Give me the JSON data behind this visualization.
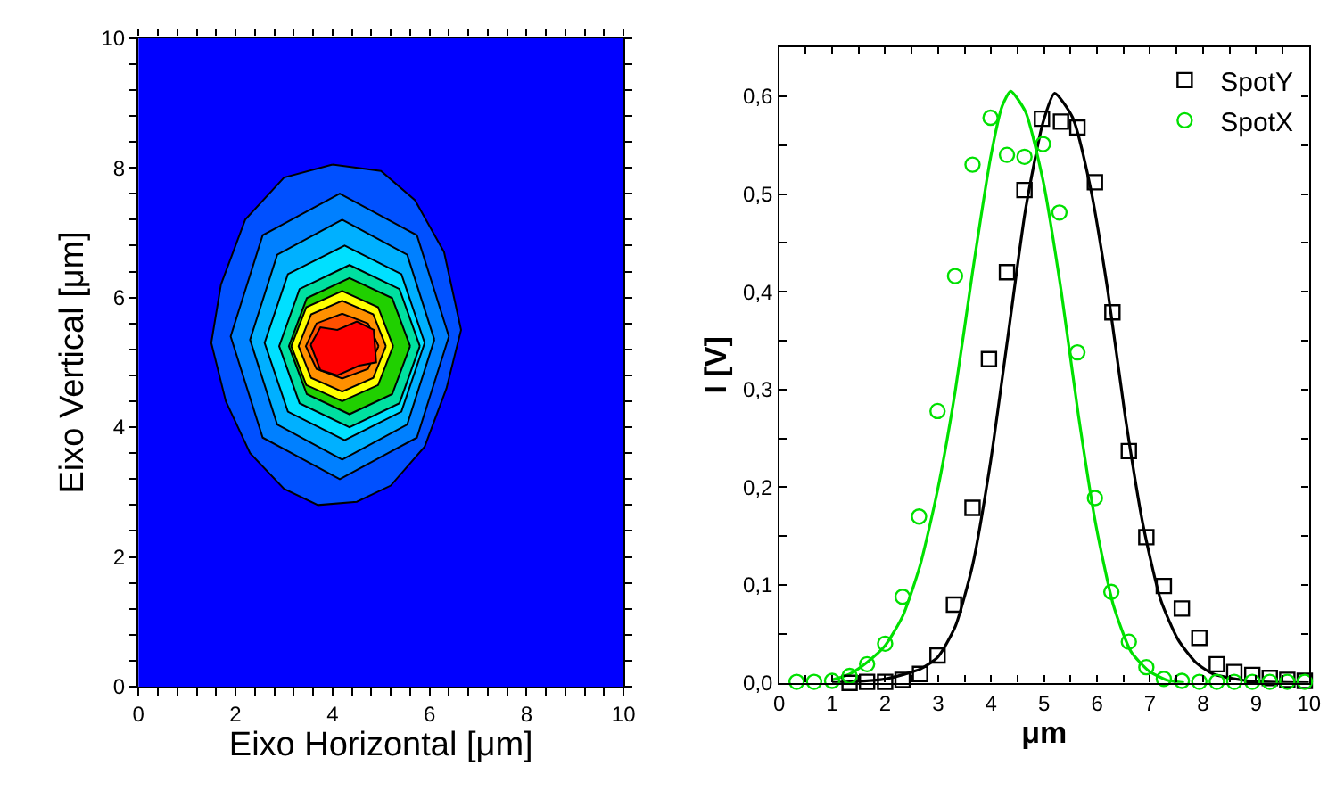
{
  "chart_data": [
    {
      "type": "area",
      "xlabel": "Eixo Horizontal [μm]",
      "ylabel": "Eixo Vertical [μm]",
      "xlim": [
        0,
        10
      ],
      "ylim": [
        0,
        10
      ],
      "xticks": [
        0,
        {
          "value": 0.4,
          "label": null
        },
        {
          "value": 0.8,
          "label": null
        },
        {
          "value": 1.2,
          "label": null
        },
        {
          "value": 1.6,
          "label": null
        },
        2,
        {
          "value": 2.4,
          "label": null
        },
        {
          "value": 2.8,
          "label": null
        },
        {
          "value": 3.2,
          "label": null
        },
        {
          "value": 3.6,
          "label": null
        },
        4,
        {
          "value": 4.4,
          "label": null
        },
        {
          "value": 4.8,
          "label": null
        },
        {
          "value": 5.2,
          "label": null
        },
        {
          "value": 5.6,
          "label": null
        },
        6,
        {
          "value": 6.4,
          "label": null
        },
        {
          "value": 6.8,
          "label": null
        },
        {
          "value": 7.2,
          "label": null
        },
        {
          "value": 7.6,
          "label": null
        },
        8,
        {
          "value": 8.4,
          "label": null
        },
        {
          "value": 8.8,
          "label": null
        },
        {
          "value": 9.2,
          "label": null
        },
        {
          "value": 9.6,
          "label": null
        },
        10
      ],
      "yticks": [
        0,
        {
          "value": 0.4,
          "label": null
        },
        {
          "value": 0.8,
          "label": null
        },
        {
          "value": 1.2,
          "label": null
        },
        {
          "value": 1.6,
          "label": null
        },
        2,
        {
          "value": 2.4,
          "label": null
        },
        {
          "value": 2.8,
          "label": null
        },
        {
          "value": 3.2,
          "label": null
        },
        {
          "value": 3.6,
          "label": null
        },
        4,
        {
          "value": 4.4,
          "label": null
        },
        {
          "value": 4.8,
          "label": null
        },
        {
          "value": 5.2,
          "label": null
        },
        {
          "value": 5.6,
          "label": null
        },
        6,
        {
          "value": 6.4,
          "label": null
        },
        {
          "value": 6.8,
          "label": null
        },
        {
          "value": 7.2,
          "label": null
        },
        {
          "value": 7.6,
          "label": null
        },
        8,
        {
          "value": 8.4,
          "label": null
        },
        {
          "value": 8.8,
          "label": null
        },
        {
          "value": 9.2,
          "label": null
        },
        {
          "value": 9.6,
          "label": null
        },
        10
      ],
      "series": [
        {
          "color": "#0050ff",
          "x": [
            4.0,
            3.0,
            2.2,
            1.7,
            1.5,
            1.8,
            2.3,
            3.0,
            3.7,
            4.5,
            5.2,
            5.9,
            6.35,
            6.65,
            6.3,
            5.7,
            5.0,
            4.0
          ],
          "values": [
            8.05,
            7.85,
            7.2,
            6.2,
            5.3,
            4.4,
            3.6,
            3.05,
            2.8,
            2.85,
            3.1,
            3.7,
            4.6,
            5.5,
            6.7,
            7.5,
            7.95,
            8.05
          ]
        },
        {
          "color": "#0080ff",
          "x": [
            6.4,
            5.74,
            4.15,
            2.56,
            1.9,
            2.56,
            4.15,
            5.74,
            6.4
          ],
          "values": [
            5.4,
            6.96,
            7.6,
            6.96,
            5.4,
            3.84,
            3.2,
            3.84,
            5.4
          ]
        },
        {
          "color": "#00b0ff",
          "x": [
            6.1,
            5.54,
            4.2,
            2.86,
            2.3,
            2.86,
            4.2,
            5.54,
            6.1
          ],
          "values": [
            5.35,
            6.66,
            7.2,
            6.66,
            5.35,
            4.04,
            3.5,
            4.04,
            5.35
          ]
        },
        {
          "color": "#00e0ff",
          "x": [
            5.9,
            5.42,
            4.25,
            3.08,
            2.6,
            3.08,
            4.25,
            5.42,
            5.9
          ],
          "values": [
            5.3,
            6.36,
            6.8,
            6.36,
            5.3,
            4.24,
            3.8,
            4.24,
            5.3
          ]
        },
        {
          "color": "#00e0a0",
          "x": [
            5.8,
            5.38,
            4.35,
            3.32,
            2.9,
            3.32,
            4.35,
            5.38,
            5.8
          ],
          "values": [
            5.25,
            6.13,
            6.5,
            6.13,
            5.25,
            4.37,
            4.0,
            4.37,
            5.25
          ]
        },
        {
          "color": "#20d000",
          "x": [
            5.6,
            5.23,
            4.35,
            3.47,
            3.1,
            3.47,
            4.35,
            5.23,
            5.6
          ],
          "values": [
            5.25,
            5.99,
            6.3,
            5.99,
            5.25,
            4.51,
            4.2,
            4.51,
            5.25
          ]
        },
        {
          "color": "#ffff00",
          "x": [
            5.25,
            4.94,
            4.2,
            3.46,
            3.15,
            3.46,
            4.2,
            4.94,
            5.25
          ],
          "values": [
            5.25,
            5.85,
            6.1,
            5.85,
            5.25,
            4.65,
            4.4,
            4.65,
            5.25
          ]
        },
        {
          "color": "#ff9000",
          "x": [
            5.1,
            4.84,
            4.2,
            3.56,
            3.3,
            3.56,
            4.2,
            4.84,
            5.1
          ],
          "values": [
            5.25,
            5.74,
            5.95,
            5.74,
            5.25,
            4.76,
            4.55,
            4.76,
            5.25
          ]
        },
        {
          "color": "#ff5000",
          "x": [
            4.95,
            4.73,
            4.2,
            3.67,
            3.45,
            3.67,
            4.2,
            4.73,
            4.95
          ],
          "values": [
            5.25,
            5.6,
            5.75,
            5.6,
            5.25,
            4.9,
            4.75,
            4.9,
            5.25
          ]
        },
        {
          "color": "#ff0000",
          "x": [
            3.55,
            3.75,
            4.1,
            4.5,
            4.85,
            4.9,
            4.55,
            4.1,
            3.75,
            3.55
          ],
          "values": [
            5.27,
            5.54,
            5.5,
            5.63,
            5.5,
            5.0,
            4.95,
            4.8,
            4.88,
            5.27
          ]
        }
      ]
    },
    {
      "type": "scatter",
      "xlabel": "μm",
      "ylabel": "I [V]",
      "xlim": [
        0,
        10
      ],
      "ylim": [
        0,
        0.65
      ],
      "legend": "top right",
      "xticks": [
        0,
        {
          "value": 0.5,
          "label": null
        },
        1,
        {
          "value": 1.5,
          "label": null
        },
        2,
        {
          "value": 2.5,
          "label": null
        },
        3,
        {
          "value": 3.5,
          "label": null
        },
        4,
        {
          "value": 4.5,
          "label": null
        },
        5,
        {
          "value": 5.5,
          "label": null
        },
        6,
        {
          "value": 6.5,
          "label": null
        },
        7,
        {
          "value": 7.5,
          "label": null
        },
        8,
        {
          "value": 8.5,
          "label": null
        },
        9,
        {
          "value": 9.5,
          "label": null
        },
        10
      ],
      "yticks": [
        {
          "value": 0,
          "label": "0,0"
        },
        {
          "value": 0.05,
          "label": null
        },
        {
          "value": 0.1,
          "label": "0,1"
        },
        {
          "value": 0.15,
          "label": null
        },
        {
          "value": 0.2,
          "label": "0,2"
        },
        {
          "value": 0.25,
          "label": null
        },
        {
          "value": 0.3,
          "label": "0,3"
        },
        {
          "value": 0.35,
          "label": null
        },
        {
          "value": 0.4,
          "label": "0,4"
        },
        {
          "value": 0.45,
          "label": null
        },
        {
          "value": 0.5,
          "label": "0,5"
        },
        {
          "value": 0.55,
          "label": null
        },
        {
          "value": 0.6,
          "label": "0,6"
        }
      ],
      "series": [
        {
          "type": "line",
          "color": "#000000",
          "x": [
            1.0,
            2.0,
            2.66,
            2.99,
            3.32,
            3.65,
            3.99,
            4.32,
            4.65,
            4.98,
            5.2,
            5.54,
            5.87,
            6.2,
            6.53,
            6.87,
            7.2,
            7.53,
            7.86,
            8.19,
            8.86,
            10.0
          ],
          "values": [
            0.0,
            0.004,
            0.014,
            0.026,
            0.057,
            0.12,
            0.226,
            0.355,
            0.484,
            0.573,
            0.603,
            0.578,
            0.508,
            0.402,
            0.273,
            0.161,
            0.085,
            0.044,
            0.021,
            0.009,
            0.002,
            0.0
          ]
        },
        {
          "type": "line",
          "color": "#00e000",
          "x": [
            1.0,
            1.33,
            1.66,
            2.0,
            2.33,
            2.66,
            2.99,
            3.32,
            3.65,
            3.99,
            4.21,
            4.37,
            4.65,
            4.98,
            5.32,
            5.65,
            5.98,
            6.31,
            6.64,
            6.98,
            7.31,
            7.64
          ],
          "values": [
            0.003,
            0.009,
            0.021,
            0.038,
            0.068,
            0.12,
            0.197,
            0.297,
            0.42,
            0.537,
            0.59,
            0.605,
            0.584,
            0.514,
            0.402,
            0.273,
            0.161,
            0.079,
            0.032,
            0.012,
            0.003,
            0.0
          ]
        },
        {
          "name": "SpotY",
          "color": "#000000",
          "marker": "square",
          "x": [
            1.33,
            1.66,
            2.0,
            2.33,
            2.66,
            2.99,
            3.3,
            3.65,
            3.96,
            4.3,
            4.63,
            4.96,
            5.32,
            5.63,
            5.96,
            6.29,
            6.6,
            6.93,
            7.26,
            7.6,
            7.93,
            8.26,
            8.59,
            8.93,
            9.26,
            9.59,
            9.92
          ],
          "values": [
            0.0,
            0.001,
            0.001,
            0.003,
            0.009,
            0.028,
            0.08,
            0.179,
            0.331,
            0.42,
            0.504,
            0.577,
            0.574,
            0.568,
            0.512,
            0.379,
            0.237,
            0.149,
            0.099,
            0.076,
            0.046,
            0.019,
            0.011,
            0.008,
            0.005,
            0.003,
            0.002
          ]
        },
        {
          "name": "SpotX",
          "color": "#00e000",
          "marker": "circle",
          "x": [
            0.33,
            0.66,
            1.0,
            1.33,
            1.66,
            2.0,
            2.33,
            2.64,
            2.99,
            3.32,
            3.65,
            3.99,
            4.3,
            4.63,
            4.98,
            5.29,
            5.63,
            5.96,
            6.27,
            6.6,
            6.93,
            7.26,
            7.6,
            7.93,
            8.26,
            8.59,
            8.93,
            9.26,
            9.59,
            9.92
          ],
          "values": [
            0.001,
            0.001,
            0.002,
            0.007,
            0.019,
            0.04,
            0.088,
            0.17,
            0.278,
            0.416,
            0.53,
            0.578,
            0.54,
            0.538,
            0.551,
            0.481,
            0.338,
            0.189,
            0.093,
            0.042,
            0.016,
            0.004,
            0.002,
            0.001,
            0.001,
            0.001,
            0.001,
            0.001,
            0.001,
            0.001
          ]
        }
      ]
    }
  ]
}
